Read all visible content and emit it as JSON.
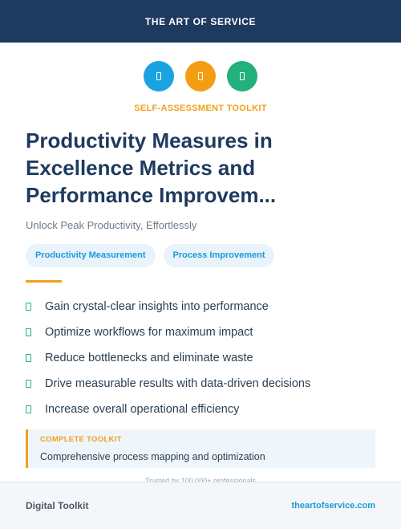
{
  "header": {
    "brand": "THE ART OF SERVICE",
    "color": "#1e3a5f"
  },
  "icons": [
    {
      "name": "document-icon",
      "color": "#1aa3e0"
    },
    {
      "name": "clipboard-icon",
      "color": "#f29d12"
    },
    {
      "name": "checklist-icon",
      "color": "#22b07d"
    }
  ],
  "kicker": "SELF-ASSESSMENT TOOLKIT",
  "title_lines": [
    "Productivity Measures in",
    "Excellence Metrics and",
    "Performance Improvem..."
  ],
  "subtitle": "Unlock Peak Productivity, Effortlessly",
  "tags": [
    "Productivity Measurement",
    "Process Improvement"
  ],
  "benefits": [
    "Gain crystal-clear insights into performance",
    "Optimize workflows for maximum impact",
    "Reduce bottlenecks and eliminate waste",
    "Drive measurable results with data-driven decisions",
    "Increase overall operational efficiency"
  ],
  "callout": {
    "label": "COMPLETE TOOLKIT",
    "text": "Comprehensive process mapping and optimization"
  },
  "trusted": "Trusted by 100,000+ professionals",
  "footer": {
    "left": "Digital Toolkit",
    "right": "theartofservice.com"
  }
}
